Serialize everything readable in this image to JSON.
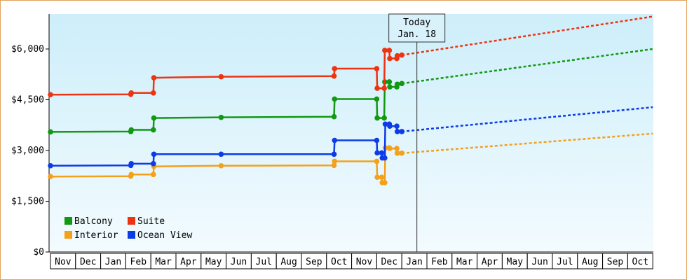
{
  "chart_data": {
    "type": "line",
    "y_axis": {
      "ylim": [
        0,
        6000
      ],
      "ticks": [
        0,
        1500,
        3000,
        4500,
        6000
      ],
      "tick_labels": [
        "$0",
        "$1,500",
        "$3,000",
        "$4,500",
        "$6,000"
      ]
    },
    "x_axis": {
      "months": [
        "Nov",
        "Dec",
        "Jan",
        "Feb",
        "Mar",
        "Apr",
        "May",
        "Jun",
        "Jul",
        "Aug",
        "Sep",
        "Oct",
        "Nov",
        "Dec",
        "Jan",
        "Feb",
        "Mar",
        "Apr",
        "May",
        "Jun",
        "Jul",
        "Aug",
        "Sep",
        "Oct"
      ]
    },
    "today": {
      "line1": "Today",
      "line2": "Jan. 18",
      "x": 14.6
    },
    "legend": [
      "Balcony",
      "Suite",
      "Interior",
      "Ocean View"
    ],
    "series": [
      {
        "name": "Balcony",
        "color": "#119911",
        "points": [
          [
            0,
            3550
          ],
          [
            3.2,
            3560
          ],
          [
            3.22,
            3610
          ],
          [
            4.1,
            3610
          ],
          [
            4.12,
            3960
          ],
          [
            6.8,
            3980
          ],
          [
            11.3,
            4000
          ],
          [
            11.32,
            4520
          ],
          [
            13.0,
            4520
          ],
          [
            13.02,
            3960
          ],
          [
            13.3,
            3960
          ],
          [
            13.32,
            5030
          ],
          [
            13.5,
            5030
          ],
          [
            13.52,
            4880
          ],
          [
            13.8,
            4880
          ],
          [
            13.82,
            4960
          ],
          [
            14.0,
            4980
          ]
        ],
        "projection": [
          [
            14.0,
            4980
          ],
          [
            24.0,
            6000
          ]
        ]
      },
      {
        "name": "Suite",
        "color": "#ee3311",
        "points": [
          [
            0,
            4650
          ],
          [
            3.2,
            4660
          ],
          [
            3.22,
            4700
          ],
          [
            4.1,
            4700
          ],
          [
            4.12,
            5150
          ],
          [
            6.8,
            5180
          ],
          [
            11.3,
            5200
          ],
          [
            11.32,
            5420
          ],
          [
            13.0,
            5420
          ],
          [
            13.02,
            4840
          ],
          [
            13.3,
            4840
          ],
          [
            13.32,
            5960
          ],
          [
            13.5,
            5960
          ],
          [
            13.52,
            5720
          ],
          [
            13.8,
            5720
          ],
          [
            13.82,
            5800
          ],
          [
            14.0,
            5820
          ]
        ],
        "projection": [
          [
            14.0,
            5820
          ],
          [
            24.0,
            6960
          ]
        ]
      },
      {
        "name": "Interior",
        "color": "#f5a01a",
        "points": [
          [
            0,
            2230
          ],
          [
            3.2,
            2240
          ],
          [
            3.22,
            2290
          ],
          [
            4.1,
            2290
          ],
          [
            4.12,
            2530
          ],
          [
            6.8,
            2550
          ],
          [
            11.3,
            2560
          ],
          [
            11.32,
            2680
          ],
          [
            13.0,
            2680
          ],
          [
            13.02,
            2210
          ],
          [
            13.2,
            2210
          ],
          [
            13.22,
            2050
          ],
          [
            13.32,
            2050
          ],
          [
            13.34,
            3080
          ],
          [
            13.5,
            3080
          ],
          [
            13.52,
            3060
          ],
          [
            13.8,
            3060
          ],
          [
            13.82,
            2920
          ],
          [
            14.0,
            2920
          ]
        ],
        "projection": [
          [
            14.0,
            2920
          ],
          [
            24.0,
            3500
          ]
        ]
      },
      {
        "name": "Ocean View",
        "color": "#0c3be8",
        "points": [
          [
            0,
            2550
          ],
          [
            3.2,
            2560
          ],
          [
            3.22,
            2610
          ],
          [
            4.1,
            2610
          ],
          [
            4.12,
            2890
          ],
          [
            6.8,
            2890
          ],
          [
            11.3,
            2890
          ],
          [
            11.32,
            3300
          ],
          [
            13.0,
            3300
          ],
          [
            13.02,
            2930
          ],
          [
            13.2,
            2930
          ],
          [
            13.22,
            2780
          ],
          [
            13.32,
            2780
          ],
          [
            13.34,
            3780
          ],
          [
            13.5,
            3780
          ],
          [
            13.52,
            3720
          ],
          [
            13.8,
            3720
          ],
          [
            13.82,
            3560
          ],
          [
            14.0,
            3560
          ]
        ],
        "projection": [
          [
            14.0,
            3560
          ],
          [
            24.0,
            4280
          ]
        ]
      }
    ]
  }
}
